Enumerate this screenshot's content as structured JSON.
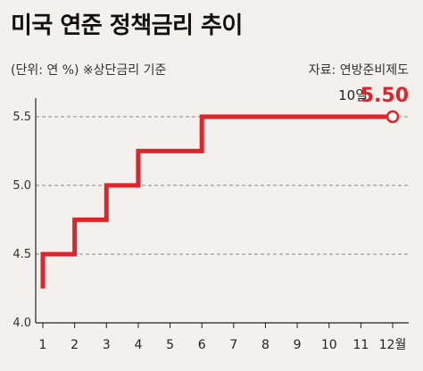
{
  "header": {
    "title": "미국 연준 정책금리 추이",
    "unit_note": "(단위: 연 %) ※상단금리 기준",
    "source": "자료: 연방준비제도"
  },
  "colors": {
    "line": "#e0242a",
    "grid": "#888888",
    "axis": "#222222",
    "background": "#f3f1ee"
  },
  "chart_data": {
    "type": "line",
    "step": true,
    "title": "미국 연준 정책금리 추이",
    "x": [
      1,
      2,
      3,
      4,
      5,
      6,
      7,
      8,
      9,
      10,
      11,
      12
    ],
    "x_tick_labels": [
      "1",
      "2",
      "3",
      "4",
      "5",
      "6",
      "7",
      "8",
      "9",
      "10",
      "11",
      "12월"
    ],
    "y_ticks": [
      4.0,
      4.5,
      5.0,
      5.5
    ],
    "y_tick_labels": [
      "4.0",
      "4.5",
      "5.0",
      "5.5"
    ],
    "ylim": [
      4.0,
      5.7
    ],
    "grid": true,
    "series": [
      {
        "x": [
          1,
          2,
          3,
          4,
          5,
          6,
          7,
          8,
          9,
          10,
          11,
          12
        ],
        "values": [
          4.5,
          4.75,
          5.0,
          5.25,
          5.25,
          5.5,
          5.5,
          5.5,
          5.5,
          5.5,
          5.5,
          5.5
        ],
        "start_value": 4.25
      }
    ],
    "annotations": [
      {
        "label": "10일",
        "value": "5.50",
        "x": 12,
        "y": 5.5
      }
    ]
  }
}
